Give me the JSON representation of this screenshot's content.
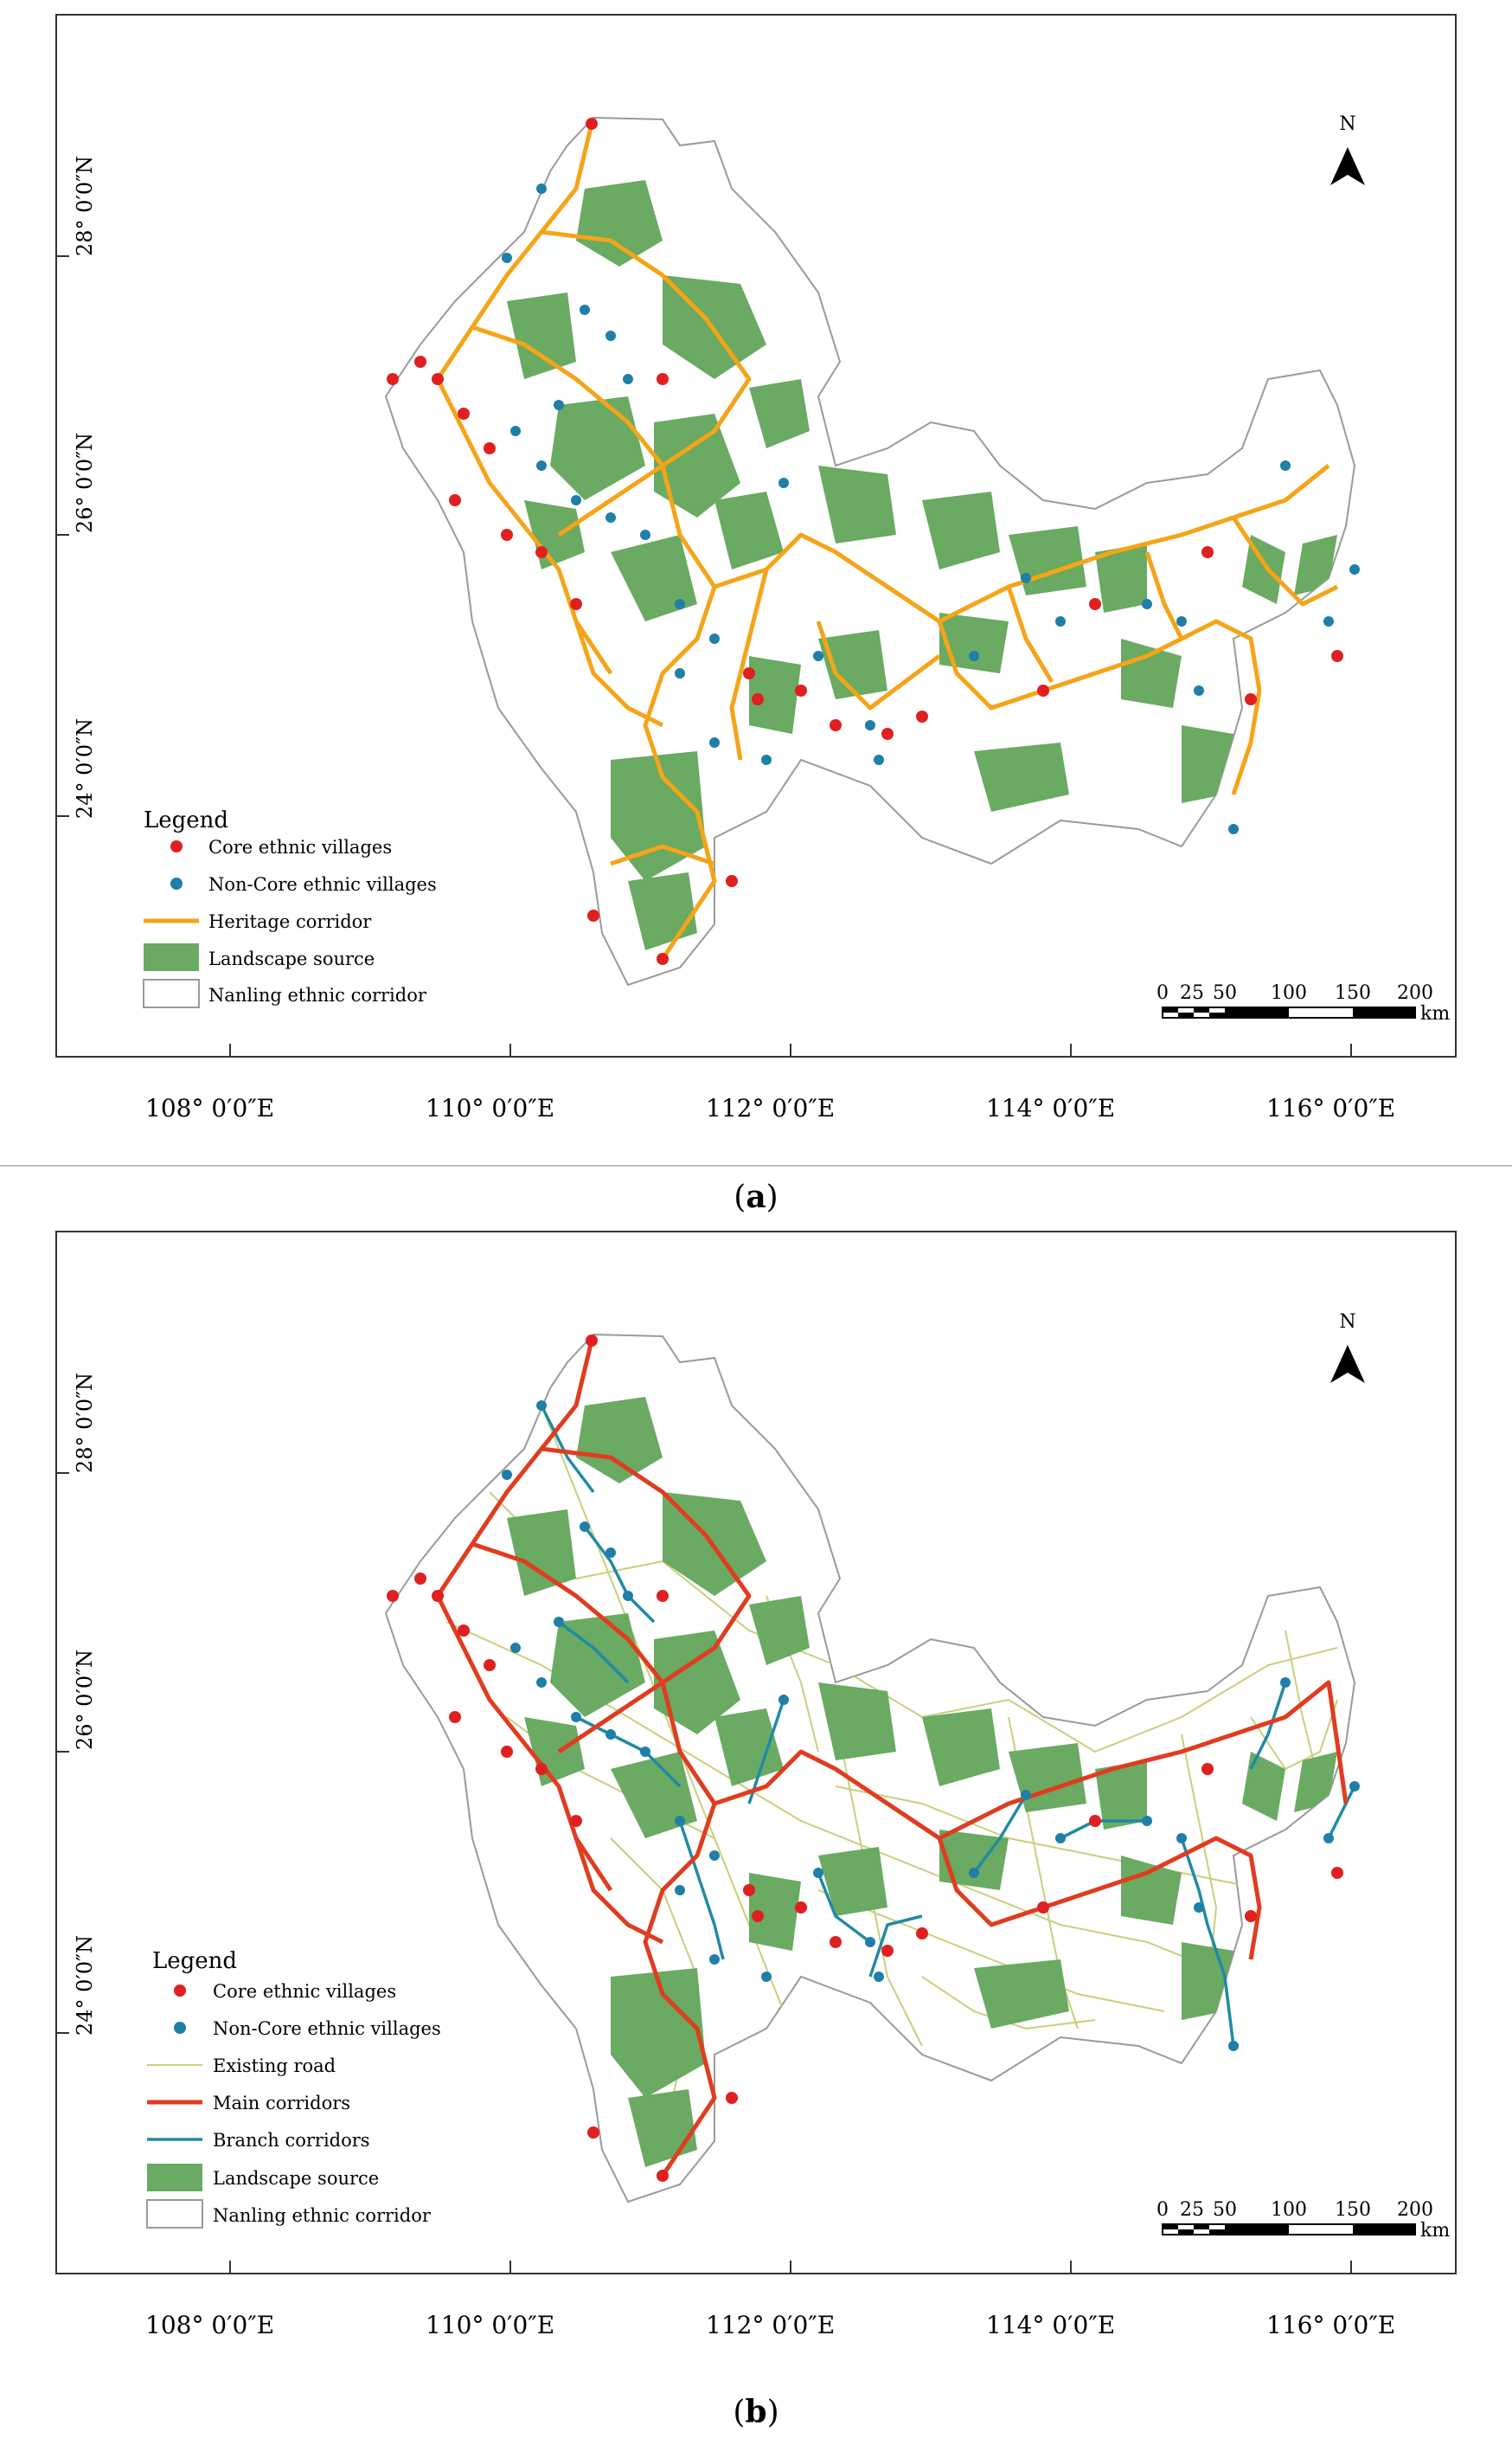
{
  "maps": [
    {
      "caption": "(a)",
      "caption_letter": "a",
      "north_label": "N",
      "lat_labels": [
        "28° 0′0″N",
        "26° 0′0″N",
        "24° 0′0″N"
      ],
      "lon_labels": [
        "108° 0′0″E",
        "110° 0′0″E",
        "112° 0′0″E",
        "114° 0′0″E",
        "116° 0′0″E"
      ],
      "legend": {
        "title": "Legend",
        "items": [
          "Core ethnic villages",
          "Non-Core ethnic villages",
          "Heritage corridor",
          "Landscape source",
          "Nanling ethnic corridor"
        ]
      },
      "scale": {
        "ticks": [
          "0",
          "25",
          "50",
          "100",
          "150",
          "200"
        ],
        "unit": "km"
      }
    },
    {
      "caption": "(b)",
      "caption_letter": "b",
      "north_label": "N",
      "lat_labels": [
        "28° 0′0″N",
        "26° 0′0″N",
        "24° 0′0″N"
      ],
      "lon_labels": [
        "108° 0′0″E",
        "110° 0′0″E",
        "112° 0′0″E",
        "114° 0′0″E",
        "116° 0′0″E"
      ],
      "legend": {
        "title": "Legend",
        "items": [
          "Core ethnic villages",
          "Non-Core ethnic villages",
          "Existing road",
          "Main corridors",
          "Branch corridors",
          "Landscape source",
          "Nanling ethnic corridor"
        ]
      },
      "scale": {
        "ticks": [
          "0",
          "25",
          "50",
          "100",
          "150",
          "200"
        ],
        "unit": "km"
      }
    }
  ],
  "colors": {
    "core_village": "#e02020",
    "noncore_village": "#1f7fa8",
    "heritage_corridor": "#f5a418",
    "main_corridor": "#e03c20",
    "branch_corridor": "#1f8aa6",
    "existing_road": "#c9cf7a",
    "landscape_source": "#6aaa62",
    "region_outline": "#9a9a9a"
  }
}
